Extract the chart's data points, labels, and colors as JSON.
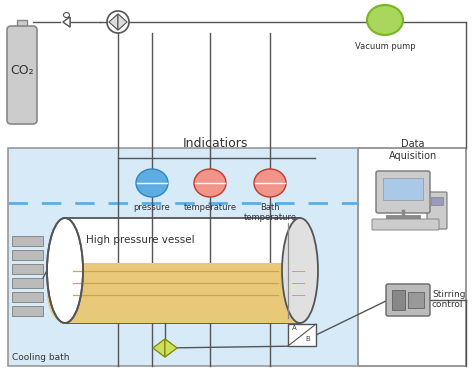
{
  "bg_color": "#ffffff",
  "cooling_bath_color": "#d6eaf8",
  "cooling_bath_border": "#888888",
  "dashed_line_color": "#5dade2",
  "vessel_liquid_color": "#e8c97a",
  "vessel_liquid_line_color": "#c9a84c",
  "indicator_blue_color": "#5dade2",
  "indicator_pink_color": "#f1948a",
  "vacuum_pump_color": "#a9d65d",
  "co2_tank_color": "#cccccc",
  "co2_tank_border": "#888888",
  "line_color": "#555555",
  "title_text": "Indicatiors",
  "pressure_label": "pressure",
  "temperature_label": "temperature",
  "bath_temp_label": "Bath\ntemperature",
  "vacuum_label": "Vacuum pump",
  "cooling_label": "Cooling bath",
  "vessel_label": "High pressure vessel",
  "data_acq_label": "Data\nAquisition",
  "stirring_label": "Stirring\ncontrol",
  "co2_label": "CO₂",
  "valve_color": "#c8e060",
  "gray_color": "#aaaaaa",
  "dark_gray": "#777777"
}
